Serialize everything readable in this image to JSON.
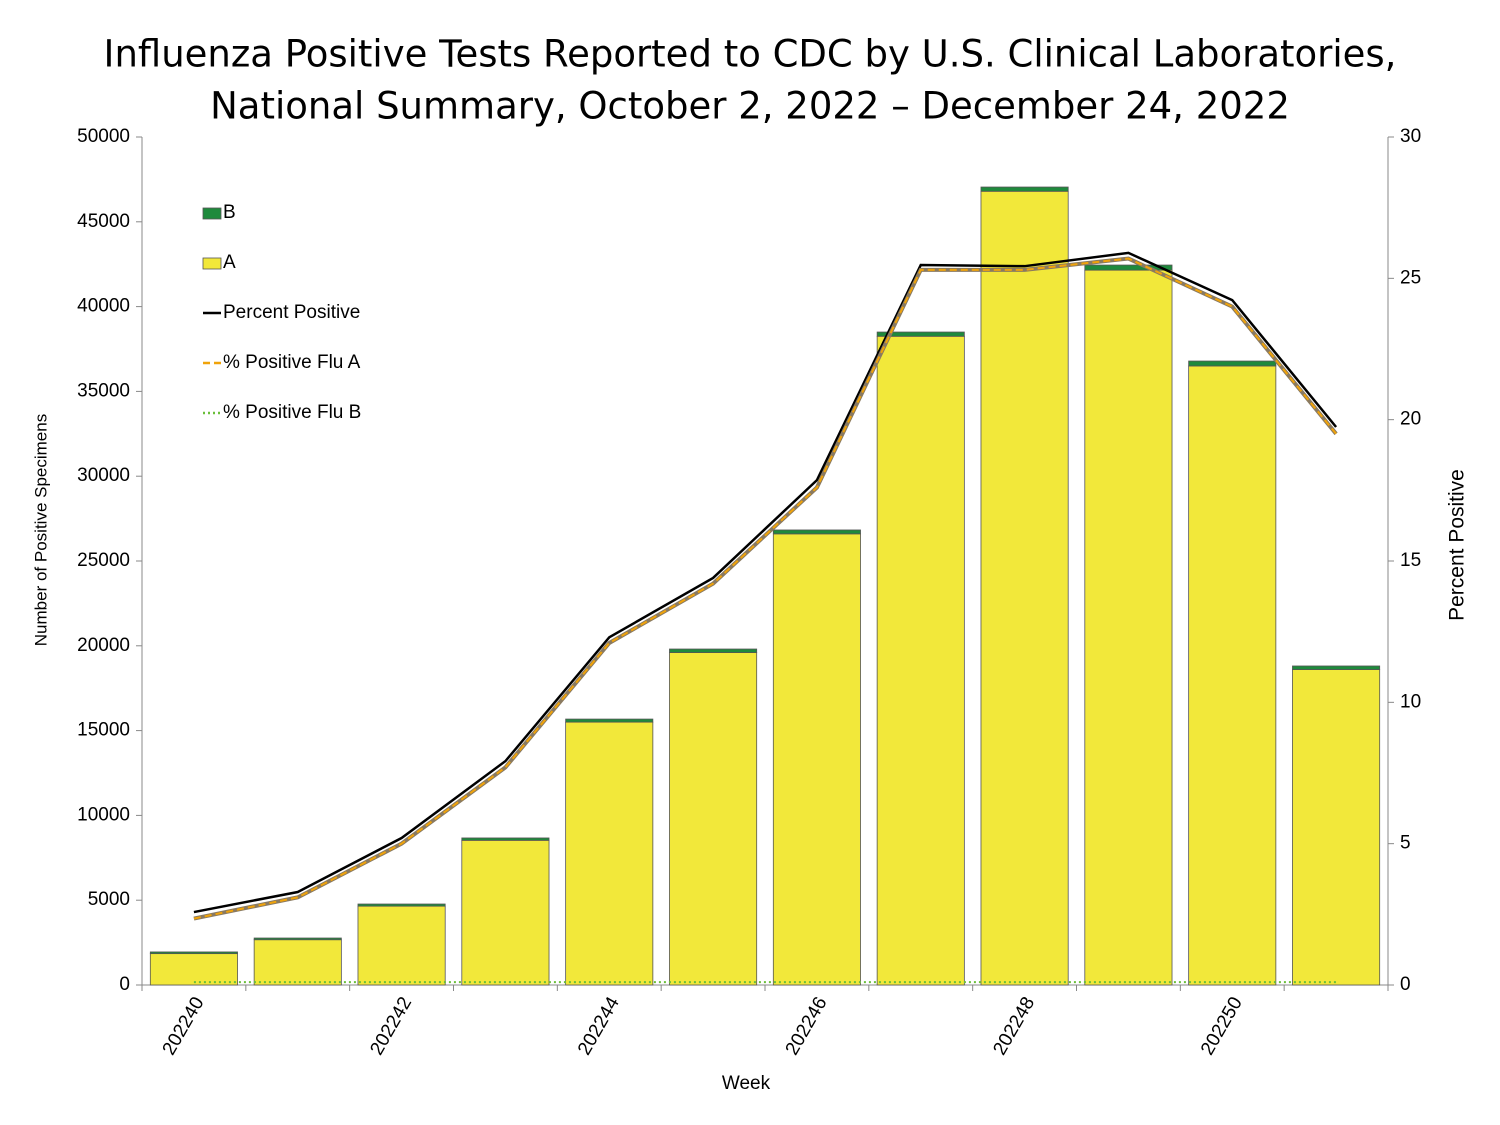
{
  "chart_data": {
    "type": "bar",
    "stacked": true,
    "title": [
      "Influenza Positive Tests Reported to CDC by U.S. Clinical Laboratories,",
      "National Summary, October 2, 2022 – December 24, 2022"
    ],
    "x_label": "Week",
    "y_label": "Number of Positive Specimens",
    "y2_label": "Percent Positive",
    "categories": [
      "202240",
      null,
      "202242",
      null,
      "202244",
      null,
      "202246",
      null,
      "202248",
      null,
      "202250",
      null
    ],
    "series": [
      {
        "name": "B",
        "kind": "bar",
        "color": "#1e8a3c",
        "values": [
          100,
          100,
          125,
          140,
          180,
          210,
          230,
          250,
          250,
          300,
          290,
          210
        ]
      },
      {
        "name": "A",
        "kind": "bar",
        "color": "#f2e83a",
        "values": [
          1850,
          2670,
          4650,
          8530,
          15500,
          19600,
          26600,
          38250,
          46800,
          42150,
          36500,
          18600
        ]
      },
      {
        "name": "Percent Positive",
        "kind": "line",
        "style": "solid",
        "axis": "y2",
        "color": "#000000",
        "values": [
          2.58,
          3.29,
          5.2,
          7.92,
          12.3,
          14.4,
          17.86,
          25.47,
          25.43,
          25.9,
          24.23,
          19.74
        ]
      },
      {
        "name": "% Positive Flu A",
        "kind": "line",
        "style": "dashed",
        "axis": "y2",
        "color": "#f0a30a",
        "values": [
          2.35,
          3.1,
          5.0,
          7.7,
          12.1,
          14.2,
          17.6,
          25.3,
          25.3,
          25.7,
          24.0,
          19.5
        ]
      },
      {
        "name": "% Positive Flu B",
        "kind": "line",
        "style": "dotted",
        "axis": "y2",
        "color": "#6abf3a",
        "values": [
          0.1,
          0.1,
          0.1,
          0.1,
          0.1,
          0.1,
          0.1,
          0.1,
          0.1,
          0.1,
          0.1,
          0.1
        ]
      }
    ],
    "ylim": [
      0,
      50000
    ],
    "yticks": [
      0,
      5000,
      10000,
      15000,
      20000,
      25000,
      30000,
      35000,
      40000,
      45000,
      50000
    ],
    "y2lim": [
      0,
      30
    ],
    "y2ticks": [
      0,
      5,
      10,
      15,
      20,
      25,
      30
    ],
    "grid": false,
    "legend": "upper-left"
  }
}
